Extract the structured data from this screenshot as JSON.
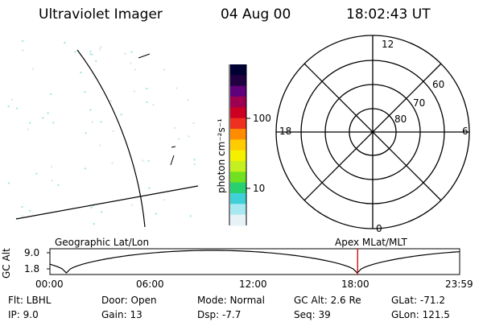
{
  "header": {
    "title": "Ultraviolet Imager",
    "date": "04 Aug 00",
    "time": "18:02:43 UT"
  },
  "colorbar": {
    "unit_label": "photon cm⁻²s⁻¹",
    "ticks": [
      "100",
      "10"
    ],
    "colors": [
      "#000033",
      "#200040",
      "#60007a",
      "#9e0050",
      "#cc0020",
      "#ee3020",
      "#ff8c00",
      "#ffcc00",
      "#f5f000",
      "#c4f020",
      "#70e020",
      "#28d070",
      "#40d0d8",
      "#a8e8f0",
      "#e6f2f5"
    ]
  },
  "polar": {
    "mlt_labels": {
      "top": "12",
      "bottom": "0",
      "left": "18",
      "right": "6"
    },
    "mlat_labels": [
      "60",
      "70",
      "80"
    ]
  },
  "altitude_strip": {
    "axis_label": "GC Alt",
    "y_ticks": [
      "9.0",
      "1.8"
    ],
    "left_caption": "Geographic Lat/Lon",
    "right_caption": "Apex MLat/MLT",
    "x_ticks": [
      "00:00",
      "06:00",
      "12:00",
      "18:00",
      "23:59"
    ],
    "current_time_fraction": 0.751,
    "line_color": "#000000",
    "marker_color": "#cc0000"
  },
  "footer": {
    "flt": "Flt: LBHL",
    "ip": "IP:  9.0",
    "door": "Door: Open",
    "gain": "Gain: 13",
    "mode": "Mode: Normal",
    "dsp": "Dsp:   -7.7",
    "gcalt": "GC Alt: 2.6 Re",
    "seq": "Seq: 39",
    "glat": "GLat: -71.2",
    "glon": "GLon: 121.5"
  }
}
